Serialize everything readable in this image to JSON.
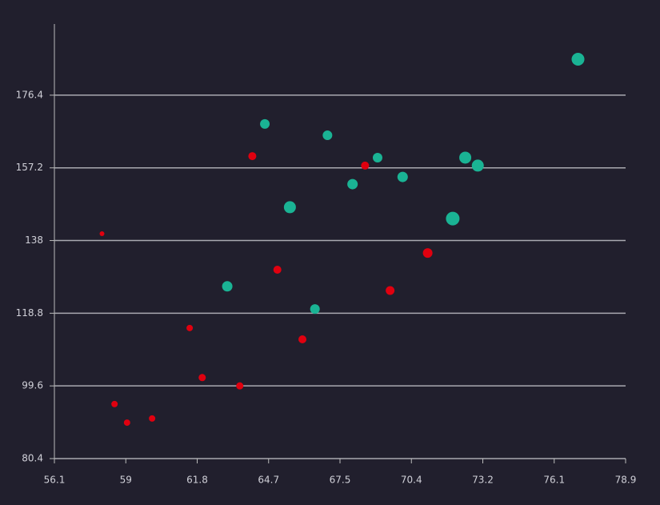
{
  "chart_data": {
    "type": "scatter",
    "xlim": [
      56.1,
      78.9
    ],
    "xticks": [
      56.1,
      {
        "value": 58.95,
        "label": "59"
      },
      61.8,
      {
        "value": 64.65,
        "label": "64.7"
      },
      67.5,
      {
        "value": 70.35,
        "label": "70.4"
      },
      73.2,
      {
        "value": 76.05,
        "label": "76.1"
      },
      78.9
    ],
    "ylim": [
      80.4,
      195.2
    ],
    "yticks": [
      80.4,
      99.6,
      118.8,
      138,
      157.2,
      176.4
    ],
    "grid": true,
    "series": [
      {
        "color": "#1ab394",
        "x": [
          77.0,
          64.5,
          67.0,
          69.0,
          72.5,
          73.0,
          70.0,
          68.0,
          65.5,
          72.0,
          63.0,
          66.5
        ],
        "values": [
          185.9,
          168.8,
          165.8,
          159.9,
          159.9,
          157.8,
          154.8,
          152.9,
          146.8,
          143.8,
          125.9,
          119.9
        ],
        "sizes": [
          8,
          6,
          6,
          6,
          7.5,
          7.5,
          6.5,
          6.5,
          7.5,
          8.5,
          6.5,
          6
        ]
      },
      {
        "color": "#e0000f",
        "x": [
          58.0,
          64.0,
          68.5,
          71.0,
          65.0,
          69.5,
          61.5,
          66.0,
          62.0,
          63.5,
          58.5,
          59.0,
          60.0
        ],
        "values": [
          139.8,
          160.3,
          157.8,
          134.7,
          130.3,
          124.8,
          114.9,
          111.9,
          101.8,
          99.6,
          94.8,
          89.9,
          91.0
        ],
        "sizes": [
          3,
          5,
          5,
          6,
          5,
          5.5,
          4,
          5,
          4.5,
          4.5,
          4,
          4,
          4
        ]
      }
    ]
  }
}
